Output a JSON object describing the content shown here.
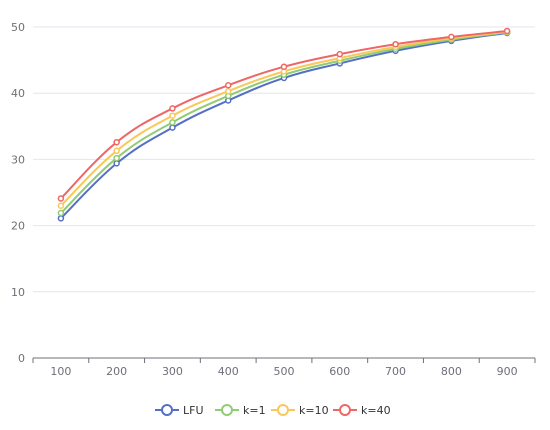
{
  "chart_data": {
    "type": "line",
    "x": [
      100,
      200,
      300,
      400,
      500,
      600,
      700,
      800,
      900
    ],
    "series": [
      {
        "name": "LFU",
        "color": "#5470c6",
        "values": [
          21.1,
          29.4,
          34.8,
          38.9,
          42.3,
          44.5,
          46.4,
          47.9,
          49.1
        ]
      },
      {
        "name": "k=1",
        "color": "#91cc75",
        "values": [
          21.9,
          30.2,
          35.6,
          39.6,
          42.8,
          44.9,
          46.7,
          48.1,
          49.2
        ]
      },
      {
        "name": "k=10",
        "color": "#fac858",
        "values": [
          23.0,
          31.3,
          36.6,
          40.3,
          43.3,
          45.3,
          47.0,
          48.3,
          49.3
        ]
      },
      {
        "name": "k=40",
        "color": "#ee6666",
        "values": [
          24.1,
          32.6,
          37.7,
          41.2,
          44.0,
          45.9,
          47.4,
          48.5,
          49.4
        ]
      }
    ],
    "xticks": [
      "100",
      "200",
      "300",
      "400",
      "500",
      "600",
      "700",
      "800",
      "900"
    ],
    "yticks": [
      "0",
      "10",
      "20",
      "30",
      "40",
      "50"
    ],
    "ylim": [
      0,
      50
    ],
    "grid": true,
    "legend_position": "bottom-center",
    "title": "",
    "xlabel": "",
    "ylabel": ""
  }
}
